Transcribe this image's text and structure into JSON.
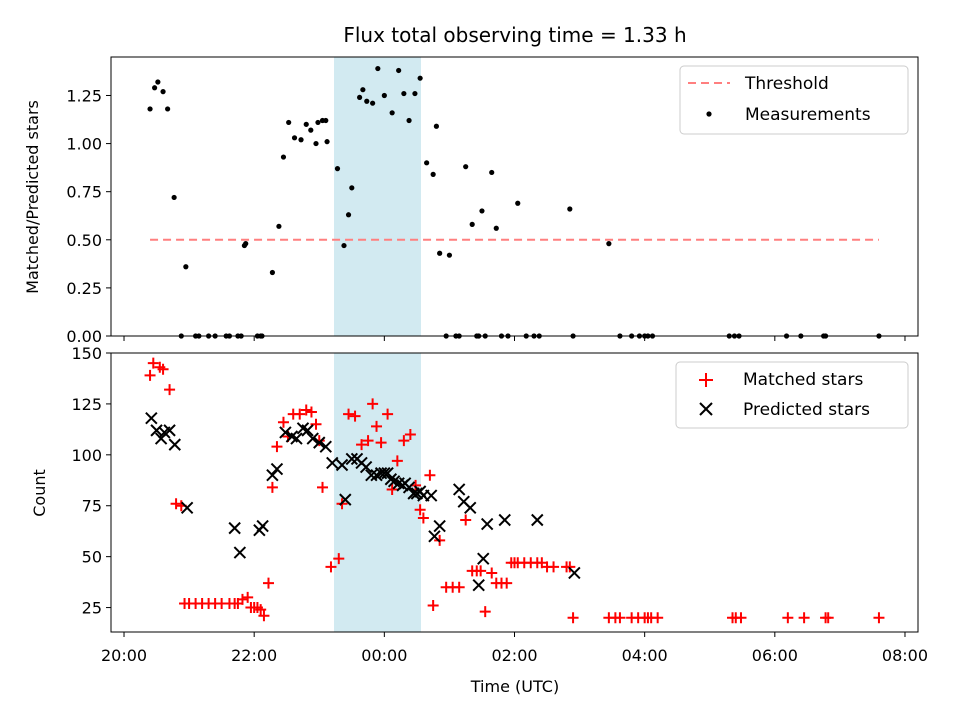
{
  "chart_data": [
    {
      "type": "scatter",
      "title": "Flux total observing time = 1.33 h",
      "ylabel": "Matched/Predicted stars",
      "xlabel": "",
      "ylim": [
        0,
        1.45
      ],
      "grid": false,
      "legend_placement": "top-right",
      "yticks": [
        "0.00",
        "0.25",
        "0.50",
        "0.75",
        "1.00",
        "1.25"
      ],
      "ytick_values": [
        0,
        0.25,
        0.5,
        0.75,
        1.0,
        1.25
      ],
      "highlight_span_h": [
        23.2,
        24.53
      ],
      "threshold": {
        "name": "Threshold",
        "value": 0.5,
        "x": [
          20.4,
          31.6
        ],
        "color": "#ff7f7f"
      },
      "series": [
        {
          "name": "Measurements",
          "color": "#000000",
          "x": [
            20.4,
            20.47,
            20.52,
            20.6,
            20.67,
            20.77,
            20.88,
            20.95,
            21.1,
            21.15,
            21.3,
            21.4,
            21.57,
            21.62,
            21.75,
            21.8,
            21.85,
            21.87,
            22.05,
            22.1,
            22.12,
            22.28,
            22.38,
            22.45,
            22.53,
            22.62,
            22.72,
            22.8,
            22.87,
            22.95,
            22.98,
            23.05,
            23.1,
            23.12,
            23.28,
            23.38,
            23.45,
            23.5,
            23.62,
            23.67,
            23.73,
            23.82,
            23.9,
            24.0,
            24.12,
            24.22,
            24.3,
            24.38,
            24.47,
            24.55,
            24.65,
            24.75,
            24.8,
            24.85,
            24.95,
            25.0,
            25.1,
            25.15,
            25.25,
            25.35,
            25.42,
            25.45,
            25.5,
            25.55,
            25.65,
            25.72,
            25.8,
            25.9,
            26.05,
            26.18,
            26.3,
            26.38,
            26.85,
            26.9,
            27.45,
            27.62,
            27.8,
            27.92,
            28.0,
            28.05,
            28.12,
            29.3,
            29.38,
            29.45,
            30.18,
            30.4,
            30.75,
            30.78,
            31.6
          ],
          "y": [
            1.18,
            1.29,
            1.32,
            1.27,
            1.18,
            0.72,
            0.0,
            0.36,
            0.0,
            0.0,
            0.0,
            0.0,
            0.0,
            0.0,
            0.0,
            0.0,
            0.47,
            0.48,
            0.0,
            0.0,
            0.0,
            0.33,
            0.57,
            0.93,
            1.11,
            1.03,
            1.02,
            1.1,
            1.07,
            1.0,
            1.11,
            1.12,
            1.12,
            1.01,
            0.87,
            0.47,
            0.63,
            0.77,
            1.24,
            1.28,
            1.22,
            1.21,
            1.39,
            1.25,
            1.16,
            1.38,
            1.26,
            1.12,
            1.26,
            1.34,
            0.9,
            0.84,
            1.09,
            0.43,
            0.0,
            0.42,
            0.0,
            0.0,
            0.88,
            0.58,
            0.0,
            0.0,
            0.65,
            0.0,
            0.85,
            0.56,
            0.0,
            0.0,
            0.69,
            0.0,
            0.0,
            0.0,
            0.66,
            0.0,
            0.48,
            0.0,
            0.0,
            0.0,
            0.0,
            0.0,
            0.0,
            0.0,
            0.0,
            0.0,
            0.0,
            0.0,
            0.0,
            0.0,
            0.0
          ]
        }
      ]
    },
    {
      "type": "scatter",
      "title": "",
      "ylabel": "Count",
      "xlabel": "Time (UTC)",
      "ylim": [
        13,
        150
      ],
      "grid": false,
      "legend_placement": "top-right",
      "yticks": [
        "25",
        "50",
        "75",
        "100",
        "125",
        "150"
      ],
      "ytick_values": [
        25,
        50,
        75,
        100,
        125,
        150
      ],
      "xlim_h": [
        19.8,
        32.2
      ],
      "xticks": [
        "20:00",
        "22:00",
        "00:00",
        "02:00",
        "04:00",
        "06:00",
        "08:00"
      ],
      "xtick_values_h": [
        20,
        22,
        24,
        26,
        28,
        30,
        32
      ],
      "highlight_span_h": [
        23.2,
        24.53
      ],
      "series": [
        {
          "name": "Matched stars",
          "marker": "plus",
          "color": "#ff0000",
          "x": [
            20.4,
            20.45,
            20.55,
            20.6,
            20.7,
            20.8,
            20.88,
            20.93,
            21.0,
            21.1,
            21.2,
            21.3,
            21.4,
            21.5,
            21.62,
            21.7,
            21.75,
            21.82,
            21.9,
            21.95,
            22.0,
            22.05,
            22.1,
            22.15,
            22.22,
            22.28,
            22.35,
            22.45,
            22.52,
            22.6,
            22.7,
            22.8,
            22.88,
            22.95,
            23.0,
            23.05,
            23.18,
            23.3,
            23.35,
            23.45,
            23.55,
            23.65,
            23.75,
            23.82,
            23.88,
            23.95,
            24.05,
            24.12,
            24.2,
            24.3,
            24.4,
            24.48,
            24.55,
            24.6,
            24.7,
            24.75,
            24.85,
            24.95,
            25.05,
            25.15,
            25.25,
            25.35,
            25.42,
            25.48,
            25.55,
            25.65,
            25.72,
            25.8,
            25.88,
            25.95,
            26.0,
            26.05,
            26.15,
            26.25,
            26.35,
            26.42,
            26.5,
            26.6,
            26.8,
            26.85,
            26.9,
            27.45,
            27.55,
            27.62,
            27.8,
            27.9,
            28.0,
            28.05,
            28.1,
            28.2,
            29.35,
            29.4,
            29.48,
            30.2,
            30.45,
            30.78,
            30.82,
            31.6
          ],
          "y": [
            139,
            145,
            143,
            142,
            132,
            76,
            75,
            27,
            27,
            27,
            27,
            27,
            27,
            27,
            27,
            27,
            27,
            29,
            30,
            25,
            25,
            25,
            24,
            21,
            37,
            84,
            104,
            116,
            109,
            120,
            120,
            122,
            121,
            115,
            107,
            84,
            45,
            49,
            76,
            120,
            119,
            105,
            107,
            125,
            114,
            106,
            120,
            83,
            97,
            107,
            110,
            85,
            73,
            69,
            90,
            26,
            58,
            35,
            35,
            35,
            68,
            43,
            43,
            43,
            23,
            42,
            37,
            37,
            37,
            47,
            47,
            47,
            47,
            47,
            47,
            47,
            45,
            45,
            45,
            45,
            20,
            20,
            20,
            20,
            20,
            20,
            20,
            20,
            20,
            20,
            20,
            20,
            20,
            20,
            20,
            20,
            20,
            20
          ]
        },
        {
          "name": "Predicted stars",
          "marker": "x",
          "color": "#000000",
          "x": [
            20.42,
            20.5,
            20.57,
            20.62,
            20.7,
            20.78,
            20.97,
            21.7,
            21.78,
            22.08,
            22.13,
            22.28,
            22.35,
            22.48,
            22.58,
            22.65,
            22.75,
            22.82,
            22.9,
            23.0,
            23.1,
            23.2,
            23.35,
            23.4,
            23.5,
            23.58,
            23.65,
            23.72,
            23.8,
            23.88,
            23.95,
            24.0,
            24.05,
            24.1,
            24.15,
            24.22,
            24.28,
            24.32,
            24.38,
            24.45,
            24.5,
            24.55,
            24.6,
            24.72,
            24.77,
            24.85,
            25.15,
            25.22,
            25.32,
            25.45,
            25.52,
            25.58,
            25.85,
            26.35,
            26.92
          ],
          "y": [
            118,
            112,
            108,
            111,
            112,
            105,
            74,
            64,
            52,
            63,
            65,
            90,
            93,
            111,
            109,
            108,
            113,
            112,
            108,
            106,
            104,
            96,
            95,
            78,
            98,
            98,
            96,
            94,
            90,
            90,
            91,
            91,
            91,
            88,
            87,
            86,
            85,
            86,
            84,
            81,
            81,
            82,
            80,
            80,
            60,
            65,
            83,
            77,
            74,
            36,
            49,
            66,
            68,
            68,
            42
          ]
        }
      ]
    }
  ]
}
